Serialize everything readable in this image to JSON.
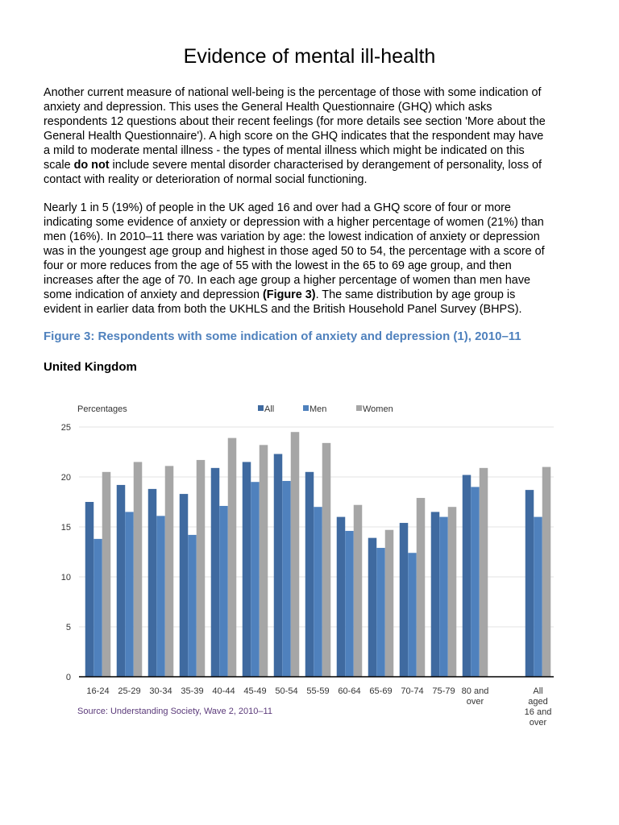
{
  "title": "Evidence of mental ill-health",
  "paragraphs": [
    [
      [
        {
          "t": "Another current measure of national well-being is the percentage of those with some indication of"
        }
      ],
      [
        {
          "t": "anxiety and depression. This uses the General Health Questionnaire (GHQ) which asks"
        }
      ],
      [
        {
          "t": "respondents 12 questions about their recent feelings (for more details see section 'More about the"
        }
      ],
      [
        {
          "t": "General Health Questionnaire'). A high score on the GHQ indicates that the respondent may have"
        }
      ],
      [
        {
          "t": "a mild to moderate mental illness - the types of mental illness which might be indicated on this"
        }
      ],
      [
        {
          "t": "scale "
        },
        {
          "t": "do not",
          "b": true
        },
        {
          "t": " include severe mental disorder characterised by derangement of personality, loss of"
        }
      ],
      [
        {
          "t": "contact with reality or deterioration of normal social functioning."
        }
      ]
    ],
    [
      [
        {
          "t": "Nearly 1 in 5 (19%) of people in the UK aged 16 and over had a GHQ score of four or more"
        }
      ],
      [
        {
          "t": "indicating some evidence of anxiety or depression with a higher percentage of women (21%) than"
        }
      ],
      [
        {
          "t": "men (16%). In 2010–11 there was variation by age: the lowest indication of anxiety or depression"
        }
      ],
      [
        {
          "t": "was in the youngest age group and highest in those aged 50 to 54, the percentage with a score of"
        }
      ],
      [
        {
          "t": "four or more reduces from the age of 55 with the lowest in the 65 to 69 age group, and then"
        }
      ],
      [
        {
          "t": "increases after the age of 70. In each age group a higher percentage of women than men have"
        }
      ],
      [
        {
          "t": "some indication of anxiety and depression "
        },
        {
          "t": "(Figure 3)",
          "b": true
        },
        {
          "t": ". The same distribution by age group is"
        }
      ],
      [
        {
          "t": "evident in earlier data from both the UKHLS and the British Household Panel Survey (BHPS)."
        }
      ]
    ]
  ],
  "figure_title": "Figure 3: Respondents with some indication of anxiety and depression (1), 2010–11",
  "region": "United Kingdom",
  "chart_data": {
    "type": "bar",
    "ylabel": "Percentages",
    "ylim": [
      0,
      25
    ],
    "yticks": [
      0,
      5,
      10,
      15,
      20,
      25
    ],
    "grid": true,
    "legend_placement": "top",
    "categories": [
      "16-24",
      "25-29",
      "30-34",
      "35-39",
      "40-44",
      "45-49",
      "50-54",
      "55-59",
      "60-64",
      "65-69",
      "70-74",
      "75-79",
      "80 and over",
      "All aged 16 and over"
    ],
    "category_lines": [
      [
        "16-24"
      ],
      [
        "25-29"
      ],
      [
        "30-34"
      ],
      [
        "35-39"
      ],
      [
        "40-44"
      ],
      [
        "45-49"
      ],
      [
        "50-54"
      ],
      [
        "55-59"
      ],
      [
        "60-64"
      ],
      [
        "65-69"
      ],
      [
        "70-74"
      ],
      [
        "75-79"
      ],
      [
        "80 and",
        "over"
      ],
      [
        "All",
        "aged",
        "16 and",
        "over"
      ]
    ],
    "series": [
      {
        "name": "All",
        "color": "#3f6aa0",
        "values": [
          17.5,
          19.2,
          18.8,
          18.3,
          20.9,
          21.5,
          22.3,
          20.5,
          16.0,
          13.9,
          15.4,
          16.5,
          20.2,
          18.7
        ]
      },
      {
        "name": "Men",
        "color": "#4f81bd",
        "values": [
          13.8,
          16.5,
          16.1,
          14.2,
          17.1,
          19.5,
          19.6,
          17.0,
          14.6,
          12.9,
          12.4,
          16.0,
          19.0,
          16.0
        ]
      },
      {
        "name": "Women",
        "color": "#a6a6a6",
        "values": [
          20.5,
          21.5,
          21.1,
          21.7,
          23.9,
          23.2,
          24.5,
          23.4,
          17.2,
          14.7,
          17.9,
          17.0,
          20.9,
          21.0
        ]
      }
    ],
    "source": "Source: Understanding Society, Wave 2, 2010–11"
  }
}
